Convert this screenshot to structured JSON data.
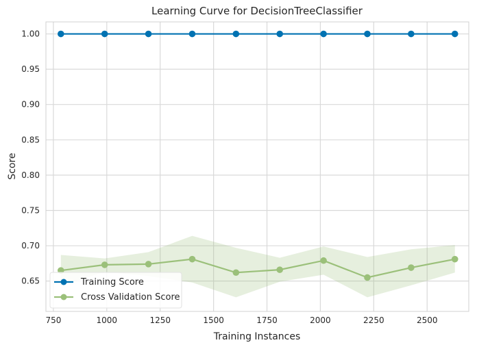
{
  "chart_data": {
    "type": "line",
    "title": "Learning Curve for DecisionTreeClassifier",
    "xlabel": "Training Instances",
    "ylabel": "Score",
    "xlim": [
      715,
      2695
    ],
    "ylim": [
      0.607,
      1.017
    ],
    "xticks": [
      750,
      1000,
      1250,
      1500,
      1750,
      2000,
      2250,
      2500
    ],
    "yticks": [
      0.65,
      0.7,
      0.75,
      0.8,
      0.85,
      0.9,
      0.95,
      1.0
    ],
    "grid": true,
    "legend_position": "lower-left",
    "x": [
      785,
      990,
      1195,
      1400,
      1605,
      1810,
      2015,
      2220,
      2425,
      2630
    ],
    "series": [
      {
        "name": "Training Score",
        "color": "#0072b2",
        "values": [
          1.0,
          1.0,
          1.0,
          1.0,
          1.0,
          1.0,
          1.0,
          1.0,
          1.0,
          1.0
        ]
      },
      {
        "name": "Cross Validation Score",
        "color": "#9bc07a",
        "values": [
          0.665,
          0.673,
          0.674,
          0.681,
          0.662,
          0.666,
          0.679,
          0.655,
          0.669,
          0.681
        ],
        "band_upper": [
          0.687,
          0.682,
          0.691,
          0.714,
          0.697,
          0.683,
          0.699,
          0.684,
          0.695,
          0.701
        ],
        "band_lower": [
          0.643,
          0.663,
          0.657,
          0.648,
          0.627,
          0.649,
          0.659,
          0.627,
          0.644,
          0.662
        ]
      }
    ]
  },
  "ui": {
    "background": "#ffffff",
    "axis_frame": "#d0d0d0",
    "band_fill": "#9bc07a"
  }
}
